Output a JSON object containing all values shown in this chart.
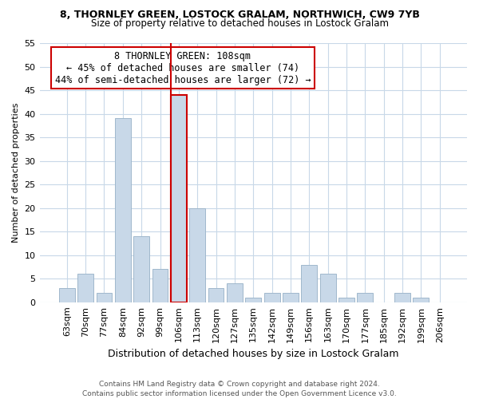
{
  "title_line1": "8, THORNLEY GREEN, LOSTOCK GRALAM, NORTHWICH, CW9 7YB",
  "title_line2": "Size of property relative to detached houses in Lostock Gralam",
  "xlabel": "Distribution of detached houses by size in Lostock Gralam",
  "ylabel": "Number of detached properties",
  "bar_labels": [
    "63sqm",
    "70sqm",
    "77sqm",
    "84sqm",
    "92sqm",
    "99sqm",
    "106sqm",
    "113sqm",
    "120sqm",
    "127sqm",
    "135sqm",
    "142sqm",
    "149sqm",
    "156sqm",
    "163sqm",
    "170sqm",
    "177sqm",
    "185sqm",
    "192sqm",
    "199sqm",
    "206sqm"
  ],
  "bar_heights": [
    3,
    6,
    2,
    39,
    14,
    7,
    44,
    20,
    3,
    4,
    1,
    2,
    2,
    8,
    6,
    1,
    2,
    0,
    2,
    1,
    0
  ],
  "bar_color": "#c8d8e8",
  "bar_edge_color": "#a0b8cc",
  "highlight_bar_index": 6,
  "highlight_edge_color": "#cc0000",
  "vline_color": "#cc0000",
  "vline_x_index": 6,
  "annotation_line1": "8 THORNLEY GREEN: 108sqm",
  "annotation_line2": "← 45% of detached houses are smaller (74)",
  "annotation_line3": "44% of semi-detached houses are larger (72) →",
  "annotation_box_color": "#ffffff",
  "annotation_box_edge_color": "#cc0000",
  "ylim": [
    0,
    55
  ],
  "yticks": [
    0,
    5,
    10,
    15,
    20,
    25,
    30,
    35,
    40,
    45,
    50,
    55
  ],
  "footer_line1": "Contains HM Land Registry data © Crown copyright and database right 2024.",
  "footer_line2": "Contains public sector information licensed under the Open Government Licence v3.0.",
  "background_color": "#ffffff",
  "grid_color": "#c8d8e8",
  "title1_fontsize": 9,
  "title2_fontsize": 8.5,
  "xlabel_fontsize": 9,
  "ylabel_fontsize": 8,
  "tick_fontsize": 8,
  "annotation_fontsize": 8.5,
  "footer_fontsize": 6.5
}
